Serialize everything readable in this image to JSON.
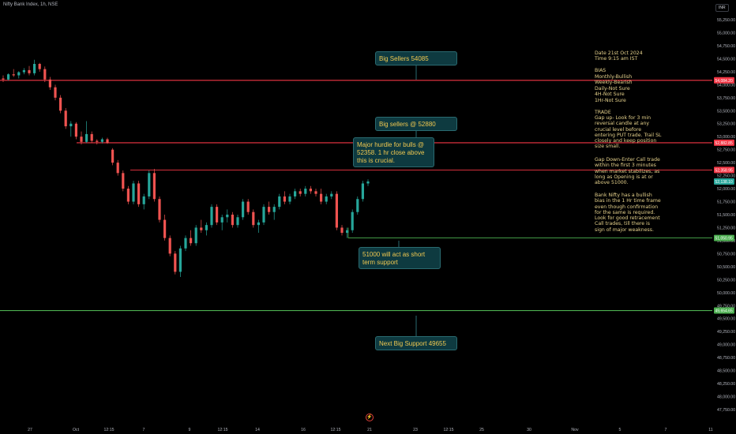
{
  "header": {
    "symbol": "Nifty Bank Index, 1h, NSE",
    "currency": "INR"
  },
  "notes": {
    "date": "Date 21st Oct 2024",
    "time": "Time 9:15 am IST",
    "bias_title": "BIAS",
    "bias_lines": [
      "Monthly-Bullish",
      "Weekly-Bearish",
      "Daily-Not Sure",
      "4H-Not Sure",
      "1Hr-Not Sure"
    ],
    "trade_title": "TRADE",
    "trade_gap_up": "Gap up- Look for 3 min\nreversal candle at any\ncrucial level before\nentering PUT trade. Trail SL\nclosely and keep position\nsize small.",
    "trade_gap_down": "Gap Down-Enter Call trade\nwithin the first 3 minutes\nwhen market stabilizes, as\nlong as Opening is at or\nabove 51000.",
    "bank_nifty_note": "Bank Nifty has a bullish\nbias in the 1 Hr time frame\neven though confirmation\nfor the same is required.\nLook for good retracement\nCall trades, till there is\nsign of major weakness."
  },
  "callouts": [
    {
      "id": "big-sellers-54085",
      "text": "Big Sellers  54085"
    },
    {
      "id": "big-sellers-52880",
      "text": "Big sellers @ 52880"
    },
    {
      "id": "major-hurdle",
      "text": "Major hurdle for bulls @\n52358. 1 hr close above\nthis is crucial."
    },
    {
      "id": "support-51000",
      "text": "51000 will act as short\nterm support"
    },
    {
      "id": "next-big-support",
      "text": "Next Big Support 49655"
    }
  ],
  "colors": {
    "background": "#000000",
    "up": "#26a69a",
    "down": "#ef5350",
    "resistance": "#f23645",
    "support": "#4caf50",
    "callout_bg": "#0e3a40",
    "callout_text": "#f0c850",
    "note_text": "#e6d28c",
    "axis_text": "#b2b5be"
  },
  "chart_data": {
    "type": "candlestick",
    "title": "Nifty Bank Index, 1h, NSE",
    "ylim": [
      47500,
      55500
    ],
    "y_ticks": [
      47750,
      48000,
      48250,
      48500,
      48750,
      49000,
      49250,
      49500,
      49750,
      50000,
      50250,
      50500,
      50750,
      51000,
      51250,
      51500,
      51750,
      52000,
      52250,
      52500,
      52750,
      53000,
      53250,
      53500,
      53750,
      54000,
      54250,
      54500,
      54750,
      55000,
      55250
    ],
    "x_tick_labels": [
      "27",
      "Oct",
      "12:15",
      "7",
      "9",
      "12:15",
      "14",
      "16",
      "12:15",
      "21",
      "23",
      "12:15",
      "25",
      "30",
      "Nov",
      "5",
      "7",
      "11"
    ],
    "horizontal_levels": [
      {
        "value": 54084.2,
        "label": "54,084.20",
        "color": "#f23645"
      },
      {
        "value": 52882.85,
        "label": "52,882.85",
        "color": "#f23645"
      },
      {
        "value": 52358.95,
        "label": "52,358.95",
        "color": "#f23645"
      },
      {
        "value": 51050.95,
        "label": "51,050.95",
        "color": "#4caf50"
      },
      {
        "value": 49654.65,
        "label": "49,654.65",
        "color": "#4caf50"
      }
    ],
    "current_price": {
      "value": 52138.1,
      "label": "52,138.10"
    },
    "candles": [
      [
        54120,
        54180,
        54050,
        54100
      ],
      [
        54100,
        54220,
        54080,
        54200
      ],
      [
        54200,
        54300,
        54150,
        54180
      ],
      [
        54180,
        54260,
        54120,
        54240
      ],
      [
        54240,
        54320,
        54200,
        54280
      ],
      [
        54280,
        54360,
        54180,
        54220
      ],
      [
        54220,
        54480,
        54180,
        54400
      ],
      [
        54400,
        54420,
        54250,
        54300
      ],
      [
        54300,
        54350,
        54050,
        54100
      ],
      [
        54100,
        54150,
        53900,
        53950
      ],
      [
        53950,
        54000,
        53700,
        53750
      ],
      [
        53750,
        53800,
        53450,
        53500
      ],
      [
        53500,
        53550,
        53150,
        53200
      ],
      [
        53200,
        53300,
        53000,
        53250
      ],
      [
        53250,
        53280,
        52950,
        53000
      ],
      [
        53000,
        53100,
        52850,
        52900
      ],
      [
        52900,
        53300,
        52880,
        53050
      ],
      [
        53050,
        53100,
        52880,
        52920
      ],
      [
        52920,
        52950,
        52850,
        52900
      ],
      [
        52900,
        52980,
        52870,
        52950
      ],
      [
        52950,
        52980,
        52860,
        52880
      ],
      [
        52750,
        52780,
        52450,
        52500
      ],
      [
        52500,
        52550,
        52250,
        52300
      ],
      [
        52300,
        52350,
        51950,
        52000
      ],
      [
        52000,
        52050,
        51700,
        51750
      ],
      [
        51750,
        52150,
        51700,
        52100
      ],
      [
        52100,
        52150,
        51650,
        51700
      ],
      [
        51700,
        51900,
        51600,
        51850
      ],
      [
        51850,
        52350,
        51800,
        52300
      ],
      [
        52300,
        52380,
        51750,
        51800
      ],
      [
        51800,
        51850,
        51350,
        51400
      ],
      [
        51400,
        51500,
        51000,
        51050
      ],
      [
        51050,
        51100,
        50700,
        50750
      ],
      [
        50750,
        50800,
        50350,
        50400
      ],
      [
        50400,
        50900,
        50300,
        50850
      ],
      [
        50850,
        51100,
        50800,
        51050
      ],
      [
        51050,
        51200,
        50900,
        50950
      ],
      [
        50950,
        51300,
        50900,
        51250
      ],
      [
        51250,
        51400,
        51150,
        51200
      ],
      [
        51200,
        51350,
        51100,
        51300
      ],
      [
        51300,
        51700,
        51250,
        51650
      ],
      [
        51650,
        51700,
        51300,
        51350
      ],
      [
        51350,
        51500,
        51200,
        51450
      ],
      [
        51450,
        51600,
        51350,
        51500
      ],
      [
        51500,
        51550,
        51250,
        51300
      ],
      [
        51300,
        51500,
        51250,
        51450
      ],
      [
        51450,
        51800,
        51400,
        51750
      ],
      [
        51750,
        51800,
        51500,
        51550
      ],
      [
        51550,
        51600,
        51250,
        51300
      ],
      [
        51300,
        51400,
        51150,
        51350
      ],
      [
        51350,
        51700,
        51300,
        51650
      ],
      [
        51650,
        51750,
        51500,
        51550
      ],
      [
        51550,
        51700,
        51400,
        51650
      ],
      [
        51650,
        51900,
        51600,
        51850
      ],
      [
        51850,
        51950,
        51700,
        51750
      ],
      [
        51750,
        51900,
        51700,
        51850
      ],
      [
        51850,
        52000,
        51800,
        51950
      ],
      [
        51950,
        52000,
        51850,
        51900
      ],
      [
        51900,
        52050,
        51850,
        52000
      ],
      [
        52000,
        52050,
        51900,
        51950
      ],
      [
        51950,
        52000,
        51850,
        51900
      ],
      [
        51900,
        52000,
        51700,
        51750
      ],
      [
        51750,
        51900,
        51700,
        51850
      ],
      [
        51850,
        51950,
        51800,
        51900
      ],
      [
        51900,
        51950,
        51200,
        51250
      ],
      [
        51250,
        51300,
        51100,
        51150
      ],
      [
        51150,
        51250,
        51050,
        51200
      ],
      [
        51200,
        51600,
        51150,
        51550
      ],
      [
        51550,
        51850,
        51500,
        51800
      ],
      [
        51800,
        52150,
        51750,
        52100
      ],
      [
        52100,
        52180,
        52050,
        52138
      ]
    ]
  }
}
